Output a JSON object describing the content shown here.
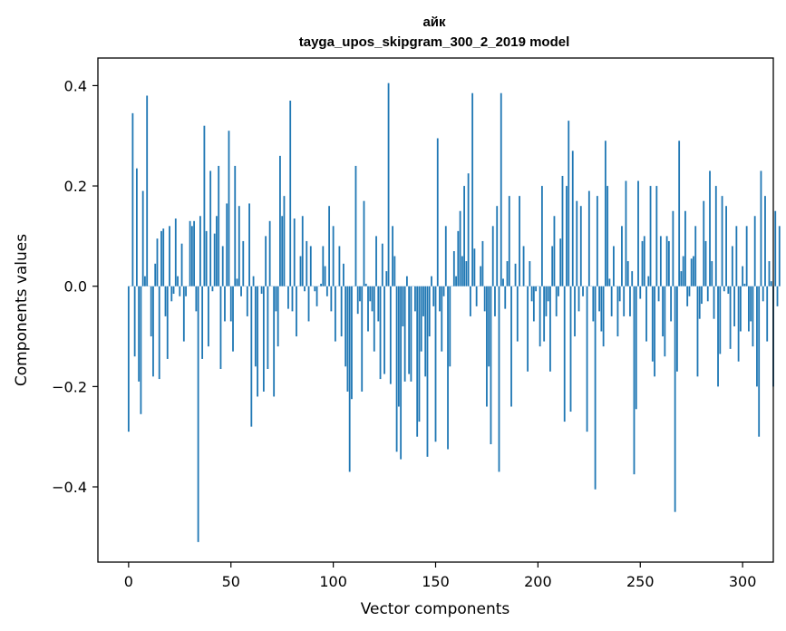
{
  "chart_data": {
    "type": "bar",
    "title": "айк",
    "subtitle": "tayga_upos_skipgram_300_2_2019 model",
    "xlabel": "Vector components",
    "ylabel": "Components values",
    "xlim": [
      -15,
      315
    ],
    "ylim": [
      -0.55,
      0.455
    ],
    "x_ticks": [
      0,
      50,
      100,
      150,
      200,
      250,
      300
    ],
    "x_tick_labels": [
      "0",
      "50",
      "100",
      "150",
      "200",
      "250",
      "300"
    ],
    "y_ticks": [
      -0.4,
      -0.2,
      0.0,
      0.2,
      0.4
    ],
    "y_tick_labels": [
      "−0.4",
      "−0.2",
      "0.0",
      "0.2",
      "0.4"
    ],
    "grid": false,
    "bar_color": "#1f77b4",
    "values": [
      -0.29,
      0.0,
      0.345,
      -0.14,
      0.235,
      -0.19,
      -0.255,
      0.19,
      0.02,
      0.38,
      0.0,
      -0.1,
      -0.18,
      0.045,
      0.095,
      -0.185,
      0.11,
      0.115,
      -0.06,
      -0.145,
      0.12,
      -0.03,
      -0.015,
      0.135,
      0.02,
      -0.02,
      0.085,
      -0.11,
      -0.02,
      0.0,
      0.13,
      0.12,
      0.13,
      -0.05,
      -0.51,
      0.14,
      -0.145,
      0.32,
      0.11,
      -0.12,
      0.23,
      -0.01,
      0.105,
      0.14,
      0.24,
      -0.165,
      0.08,
      -0.07,
      0.165,
      0.31,
      -0.07,
      -0.13,
      0.24,
      0.015,
      0.16,
      -0.02,
      0.09,
      0.0,
      -0.06,
      0.165,
      -0.28,
      0.02,
      -0.16,
      -0.22,
      0.0,
      -0.015,
      -0.21,
      0.1,
      -0.165,
      0.13,
      0.0,
      -0.22,
      -0.05,
      -0.12,
      0.26,
      0.14,
      0.18,
      0.0,
      -0.045,
      0.37,
      -0.05,
      0.135,
      -0.1,
      0.0,
      0.06,
      0.14,
      -0.01,
      0.09,
      -0.07,
      0.08,
      0.0,
      -0.01,
      -0.04,
      0.0,
      0.005,
      0.08,
      0.04,
      -0.02,
      0.16,
      -0.05,
      0.12,
      -0.11,
      0.0,
      0.08,
      -0.1,
      0.045,
      -0.16,
      -0.21,
      -0.37,
      -0.225,
      0.0,
      0.24,
      -0.055,
      -0.03,
      -0.21,
      0.17,
      0.005,
      -0.09,
      -0.03,
      -0.05,
      -0.13,
      0.1,
      -0.07,
      -0.185,
      0.085,
      -0.175,
      0.03,
      0.405,
      -0.195,
      0.12,
      0.06,
      -0.33,
      -0.24,
      -0.345,
      -0.08,
      -0.19,
      0.02,
      -0.175,
      -0.19,
      0.0,
      -0.05,
      -0.3,
      -0.27,
      -0.13,
      -0.06,
      -0.18,
      -0.34,
      -0.1,
      0.02,
      -0.04,
      -0.31,
      0.295,
      -0.05,
      -0.13,
      -0.02,
      0.12,
      -0.325,
      -0.16,
      0.0,
      0.07,
      0.02,
      0.11,
      0.15,
      0.06,
      0.2,
      0.05,
      0.225,
      -0.06,
      0.385,
      0.075,
      -0.04,
      0.0,
      0.04,
      0.09,
      -0.05,
      -0.24,
      -0.16,
      -0.315,
      0.12,
      -0.06,
      0.16,
      -0.37,
      0.385,
      0.015,
      -0.045,
      0.05,
      0.18,
      -0.24,
      0.0,
      0.045,
      -0.11,
      0.18,
      0.0,
      0.08,
      0.0,
      -0.17,
      0.05,
      -0.03,
      -0.07,
      -0.01,
      0.0,
      -0.12,
      0.2,
      -0.11,
      -0.06,
      -0.03,
      -0.17,
      0.08,
      0.14,
      -0.06,
      -0.02,
      0.095,
      0.22,
      -0.27,
      0.2,
      0.33,
      -0.25,
      0.27,
      -0.1,
      0.17,
      -0.05,
      0.16,
      -0.02,
      0.0,
      -0.29,
      0.19,
      0.0,
      -0.07,
      -0.405,
      0.18,
      -0.05,
      -0.09,
      -0.12,
      0.29,
      0.2,
      0.015,
      -0.06,
      0.08,
      0.0,
      -0.1,
      -0.03,
      0.12,
      -0.06,
      0.21,
      0.05,
      -0.06,
      0.03,
      -0.375,
      -0.245,
      0.21,
      -0.025,
      0.09,
      0.1,
      -0.11,
      0.02,
      0.2,
      -0.15,
      -0.18,
      0.2,
      -0.03,
      0.1,
      -0.1,
      -0.14,
      0.1,
      0.09,
      -0.07,
      0.15,
      -0.45,
      -0.17,
      0.29,
      0.03,
      0.06,
      0.15,
      -0.04,
      -0.02,
      0.055,
      0.06,
      0.12,
      -0.18,
      -0.065,
      -0.035,
      0.17,
      0.09,
      -0.03,
      0.23,
      0.05,
      -0.065,
      0.2,
      -0.2,
      -0.135,
      0.18,
      -0.01,
      0.16,
      -0.015,
      -0.125,
      0.08,
      -0.08,
      0.12,
      -0.15,
      -0.09,
      0.04,
      0.005,
      0.12,
      -0.09,
      -0.07,
      -0.12,
      0.14,
      -0.2,
      -0.3,
      0.23,
      -0.03,
      0.18,
      -0.11,
      0.05,
      0.01,
      -0.2,
      0.15,
      -0.04,
      0.12
    ]
  }
}
